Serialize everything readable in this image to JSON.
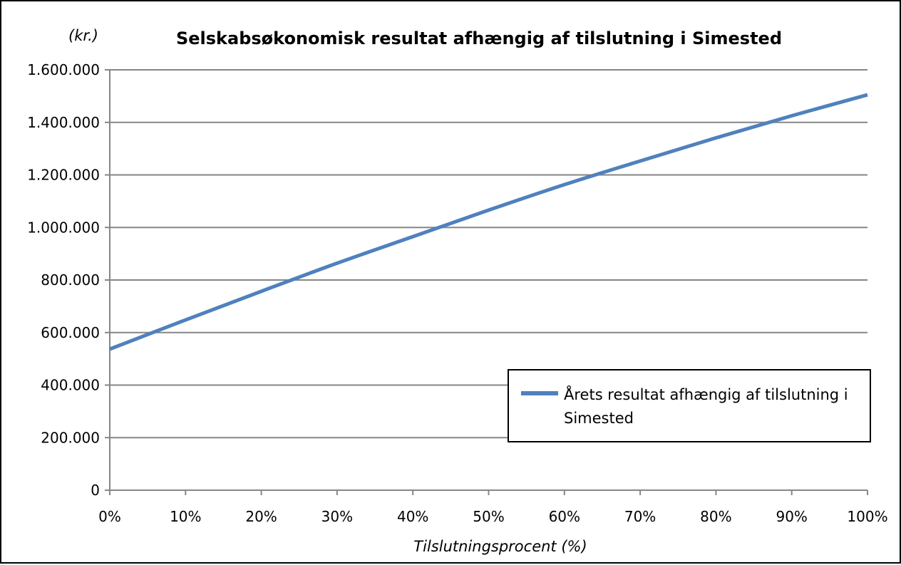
{
  "chart_data": {
    "type": "line",
    "title": "Selskabsøkonomisk resultat afhængig af tilslutning i Simested",
    "ylabel": "(kr.)",
    "xlabel": "Tilslutningsprocent (%)",
    "x_ticks": [
      "0%",
      "10%",
      "20%",
      "30%",
      "40%",
      "50%",
      "60%",
      "70%",
      "80%",
      "90%",
      "100%"
    ],
    "y_ticks": [
      "0",
      "200.000",
      "400.000",
      "600.000",
      "800.000",
      "1.000.000",
      "1.200.000",
      "1.400.000",
      "1.600.000"
    ],
    "ylim": [
      0,
      1600000
    ],
    "xlim": [
      0,
      100
    ],
    "grid": true,
    "legend_position": "bottom-right",
    "series": [
      {
        "name": "Årets resultat afhængig af tilslutning i Simested",
        "color": "#4F81BD",
        "x": [
          0,
          10,
          20,
          30,
          40,
          50,
          60,
          70,
          80,
          90,
          100
        ],
        "y": [
          537000,
          648000,
          757000,
          864000,
          965000,
          1066000,
          1163000,
          1253000,
          1341000,
          1425000,
          1505000
        ]
      }
    ]
  }
}
